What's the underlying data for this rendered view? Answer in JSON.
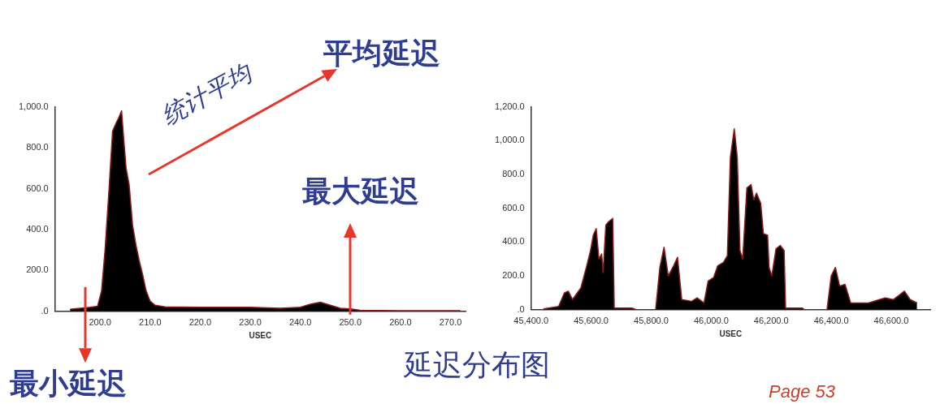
{
  "chart_data": [
    {
      "type": "area",
      "xlabel": "USEC",
      "xlim": [
        191,
        273
      ],
      "ylim": [
        0,
        1000
      ],
      "xticks": [
        {
          "value": 200,
          "label": "200.0"
        },
        {
          "value": 210,
          "label": "210.0"
        },
        {
          "value": 220,
          "label": "220.0"
        },
        {
          "value": 230,
          "label": "230.0"
        },
        {
          "value": 240,
          "label": "240.0"
        },
        {
          "value": 250,
          "label": "250.0"
        },
        {
          "value": 260,
          "label": "260.0"
        },
        {
          "value": 270,
          "label": "270.0"
        }
      ],
      "yticks": [
        {
          "value": 0,
          "label": ".0"
        },
        {
          "value": 200,
          "label": "200.0"
        },
        {
          "value": 400,
          "label": "400.0"
        },
        {
          "value": 600,
          "label": "600.0"
        },
        {
          "value": 800,
          "label": "800.0"
        },
        {
          "value": 1000,
          "label": "1,000.0"
        }
      ],
      "color": "#000000",
      "x": [
        194,
        196,
        198,
        199.5,
        200.3,
        201,
        201.8,
        202.5,
        203.2,
        203.8,
        204.3,
        204.7,
        205.2,
        205.8,
        206.5,
        207.2,
        207.8,
        208.5,
        209.2,
        210,
        211,
        213,
        220,
        230,
        236,
        240,
        242,
        244,
        246,
        248,
        250,
        252,
        260,
        270,
        272
      ],
      "values": [
        10,
        15,
        20,
        25,
        100,
        300,
        600,
        880,
        920,
        950,
        980,
        850,
        700,
        620,
        420,
        320,
        250,
        180,
        100,
        50,
        30,
        22,
        20,
        20,
        15,
        20,
        35,
        45,
        30,
        15,
        12,
        5,
        3,
        3,
        3
      ],
      "annotations": [
        "统计平均",
        "平均延迟",
        {
          "text": "最大延迟",
          "x": 250,
          "y": 0
        },
        {
          "text": "最小延迟",
          "x": 197,
          "y": 0
        },
        "延迟分布图",
        "Page 53"
      ]
    },
    {
      "type": "area",
      "xlabel": "USEC",
      "xlim": [
        45400,
        46730
      ],
      "ylim": [
        0,
        1200
      ],
      "xticks": [
        {
          "value": 45400,
          "label": "45,400.0"
        },
        {
          "value": 45600,
          "label": "45,600.0"
        },
        {
          "value": 45800,
          "label": "45,800.0"
        },
        {
          "value": 46000,
          "label": "46,000.0"
        },
        {
          "value": 46200,
          "label": "46,200.0"
        },
        {
          "value": 46400,
          "label": "46,400.0"
        },
        {
          "value": 46600,
          "label": "46,600.0"
        }
      ],
      "yticks": [
        {
          "value": 0,
          "label": ".0"
        },
        {
          "value": 200,
          "label": "200.0"
        },
        {
          "value": 400,
          "label": "400.0"
        },
        {
          "value": 600,
          "label": "600.0"
        },
        {
          "value": 800,
          "label": "800.0"
        },
        {
          "value": 1000,
          "label": "1,000.0"
        },
        {
          "value": 1200,
          "label": "1,200.0"
        }
      ],
      "color": "#000000",
      "x": [
        45441,
        45492,
        45511,
        45524,
        45538,
        45566,
        45584,
        45598,
        45607,
        45617,
        45626,
        45635,
        45640,
        45649,
        45658,
        45672,
        45677,
        45736,
        45750,
        45815,
        45829,
        45843,
        45857,
        45875,
        45888,
        45902,
        45935,
        45953,
        45976,
        45990,
        46008,
        46022,
        46041,
        46054,
        46064,
        46077,
        46087,
        46096,
        46105,
        46119,
        46133,
        46142,
        46151,
        46165,
        46174,
        46188,
        46193,
        46202,
        46216,
        46230,
        46243,
        46248,
        46303,
        46312,
        46386,
        46400,
        46414,
        46428,
        46446,
        46465,
        46524,
        46561,
        46580,
        46607,
        46644,
        46663,
        46686
      ],
      "values": [
        5,
        20,
        100,
        110,
        60,
        130,
        250,
        350,
        440,
        480,
        300,
        330,
        220,
        500,
        520,
        540,
        10,
        10,
        0,
        0,
        250,
        370,
        200,
        260,
        310,
        60,
        50,
        70,
        40,
        170,
        190,
        260,
        280,
        320,
        900,
        1070,
        900,
        350,
        300,
        720,
        740,
        650,
        690,
        630,
        450,
        440,
        250,
        200,
        360,
        380,
        350,
        10,
        10,
        0,
        0,
        200,
        250,
        140,
        150,
        40,
        40,
        60,
        70,
        60,
        110,
        60,
        40
      ]
    }
  ]
}
